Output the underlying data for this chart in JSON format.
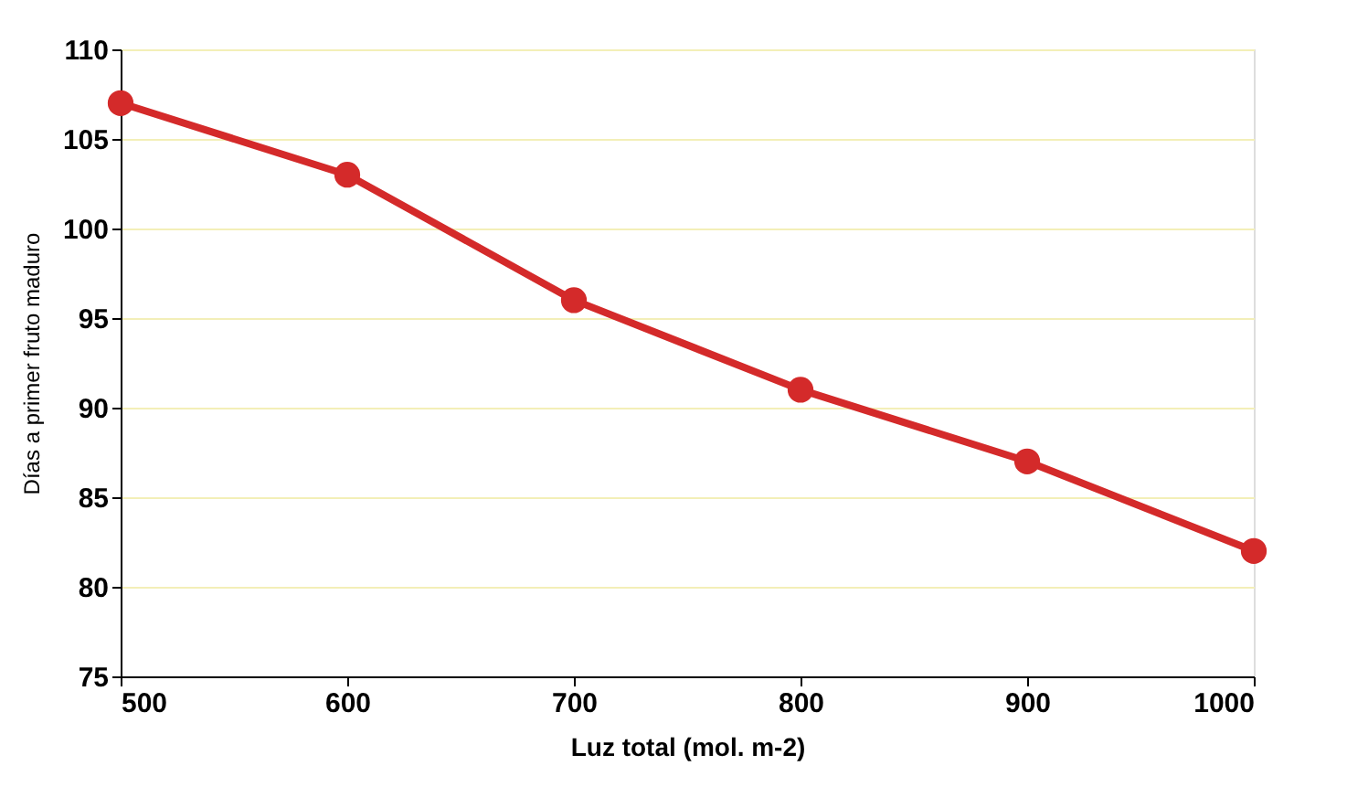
{
  "chart_data": {
    "type": "line",
    "xlabel": "Luz total (mol. m-2)",
    "ylabel": "Días a primer fruto maduro",
    "x": [
      500,
      600,
      700,
      800,
      900,
      1000
    ],
    "series": [
      {
        "color": "#d42a2a",
        "values": [
          107,
          103,
          96,
          91,
          87,
          82
        ]
      }
    ],
    "xlim": [
      500,
      1000
    ],
    "xticks": [
      500,
      600,
      700,
      800,
      900,
      1000
    ],
    "ylim": [
      75,
      110
    ],
    "yticks": [
      75,
      80,
      85,
      90,
      95,
      100,
      105,
      110
    ],
    "grid": "y",
    "marker": "circle",
    "line_style": "solid"
  }
}
